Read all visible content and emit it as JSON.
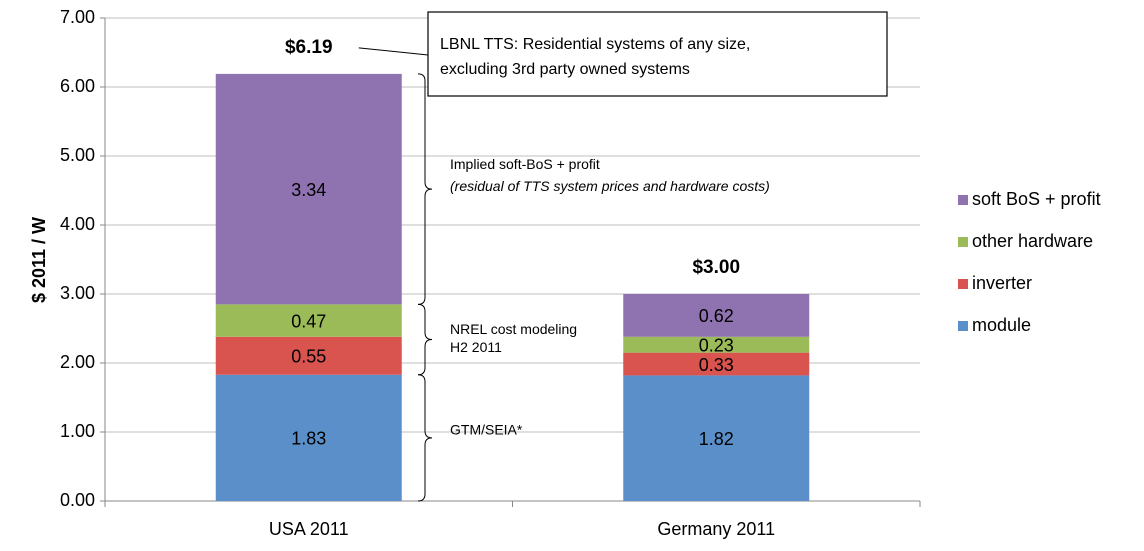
{
  "chart_data": {
    "type": "stacked_bar",
    "y_axis_label": "$ 2011 / W",
    "categories": [
      "USA 2011",
      "Germany 2011"
    ],
    "series": [
      {
        "name": "module",
        "color": "#5b8fc9",
        "values": [
          1.83,
          1.82
        ]
      },
      {
        "name": "inverter",
        "color": "#d9534f",
        "values": [
          0.55,
          0.33
        ]
      },
      {
        "name": "other hardware",
        "color": "#9bbb59",
        "values": [
          0.47,
          0.23
        ]
      },
      {
        "name": "soft BoS + profit",
        "color": "#8f72b0",
        "values": [
          3.34,
          0.62
        ]
      }
    ],
    "totals": [
      6.19,
      3.0
    ],
    "total_labels": [
      "$6.19",
      "$3.00"
    ],
    "ylim": [
      0,
      7
    ],
    "yticks": [
      {
        "value": 0,
        "label": "0.00"
      },
      {
        "value": 1,
        "label": "1.00"
      },
      {
        "value": 2,
        "label": "2.00"
      },
      {
        "value": 3,
        "label": "3.00"
      },
      {
        "value": 4,
        "label": "4.00"
      },
      {
        "value": 5,
        "label": "5.00"
      },
      {
        "value": 6,
        "label": "6.00"
      },
      {
        "value": 7,
        "label": "7.00"
      }
    ],
    "grid": true,
    "legend_position": "right",
    "annotations": {
      "box": [
        "LBNL TTS: Residential systems of any size,",
        "excluding 3rd party owned systems"
      ],
      "soft": [
        "Implied soft-BoS + profit",
        "(residual of TTS system prices and hardware costs)"
      ],
      "nrel": [
        "NREL cost modeling",
        "H2 2011"
      ],
      "gtm": "GTM/SEIA*"
    }
  }
}
